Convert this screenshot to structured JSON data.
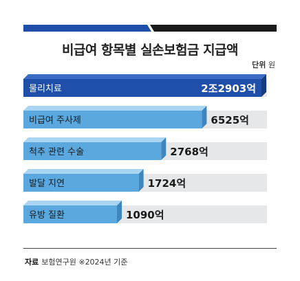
{
  "title": "비급여 항목별 실손보험금 지급액",
  "unit_label": "단위",
  "unit_value": "원",
  "source_label": "자료",
  "source_text": "보험연구원 ※2024년 기준",
  "colors": {
    "highlight_front": "#1f4fa8",
    "highlight_top": "#3d6cc4",
    "highlight_side": "#173a80",
    "normal_front": "#5ba8df",
    "normal_top": "#a9d5f2",
    "normal_side": "#3f86c0",
    "bar_bg": "#e6e7e8",
    "topbar_left": "#1f4fa8",
    "topbar_right": "#1a1a1a"
  },
  "chart_data": {
    "type": "bar",
    "orientation": "horizontal",
    "unit": "원",
    "categories": [
      "물리치료",
      "비급여 주사제",
      "척추 관련 수술",
      "발달 지연",
      "유방 질환"
    ],
    "values": [
      22903,
      6525,
      2768,
      1724,
      1090
    ],
    "value_labels": [
      "2조2903억",
      "6525억",
      "2768억",
      "1724억",
      "1090억"
    ],
    "highlight_index": 0
  }
}
